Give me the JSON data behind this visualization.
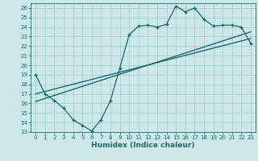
{
  "xlabel": "Humidex (Indice chaleur)",
  "bg_color": "#cce8e8",
  "line_color": "#1a6b6b",
  "grid_color": "#aacece",
  "xlim": [
    -0.5,
    23.5
  ],
  "ylim": [
    13,
    26.5
  ],
  "xticks": [
    0,
    1,
    2,
    3,
    4,
    5,
    6,
    7,
    8,
    9,
    10,
    11,
    12,
    13,
    14,
    15,
    16,
    17,
    18,
    19,
    20,
    21,
    22,
    23
  ],
  "yticks": [
    13,
    14,
    15,
    16,
    17,
    18,
    19,
    20,
    21,
    22,
    23,
    24,
    25,
    26
  ],
  "line1_x": [
    0,
    1,
    2,
    3,
    4,
    5,
    6,
    7,
    8,
    9,
    10,
    11,
    12,
    13,
    14,
    15,
    16,
    17,
    18,
    19,
    20,
    21,
    22,
    23
  ],
  "line1_y": [
    19,
    17,
    16.3,
    15.5,
    14.3,
    13.7,
    13.1,
    14.3,
    16.3,
    19.7,
    23.2,
    24.1,
    24.2,
    24.0,
    24.3,
    26.2,
    25.6,
    26.0,
    24.8,
    24.1,
    24.2,
    24.2,
    24.0,
    22.3
  ],
  "line2_x": [
    0,
    23
  ],
  "line2_y": [
    17.0,
    22.8
  ],
  "line3_x": [
    0,
    23
  ],
  "line3_y": [
    16.2,
    23.5
  ]
}
